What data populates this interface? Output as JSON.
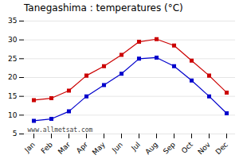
{
  "chart_data": {
    "type": "line",
    "title": "Tanegashima : temperatures (°C)",
    "categories": [
      "Jan",
      "Feb",
      "Mar",
      "Apr",
      "May",
      "Jun",
      "Jul",
      "Aug",
      "Sep",
      "Oct",
      "Nov",
      "Dec"
    ],
    "series": [
      {
        "color": "#cc0000",
        "marker": "square",
        "values": [
          14,
          14.5,
          16.5,
          20.5,
          23,
          26,
          29.5,
          30.2,
          28.5,
          24.5,
          20.5,
          16
        ]
      },
      {
        "color": "#0000cc",
        "marker": "square",
        "values": [
          8.5,
          9,
          11,
          15,
          18,
          21,
          25,
          25.3,
          23,
          19.2,
          15,
          10.5
        ]
      }
    ],
    "ylim": [
      5,
      35
    ],
    "yticks": [
      5,
      10,
      15,
      20,
      25,
      30,
      35
    ],
    "grid": true,
    "annotations": [
      "www.allmetsat.com"
    ]
  }
}
